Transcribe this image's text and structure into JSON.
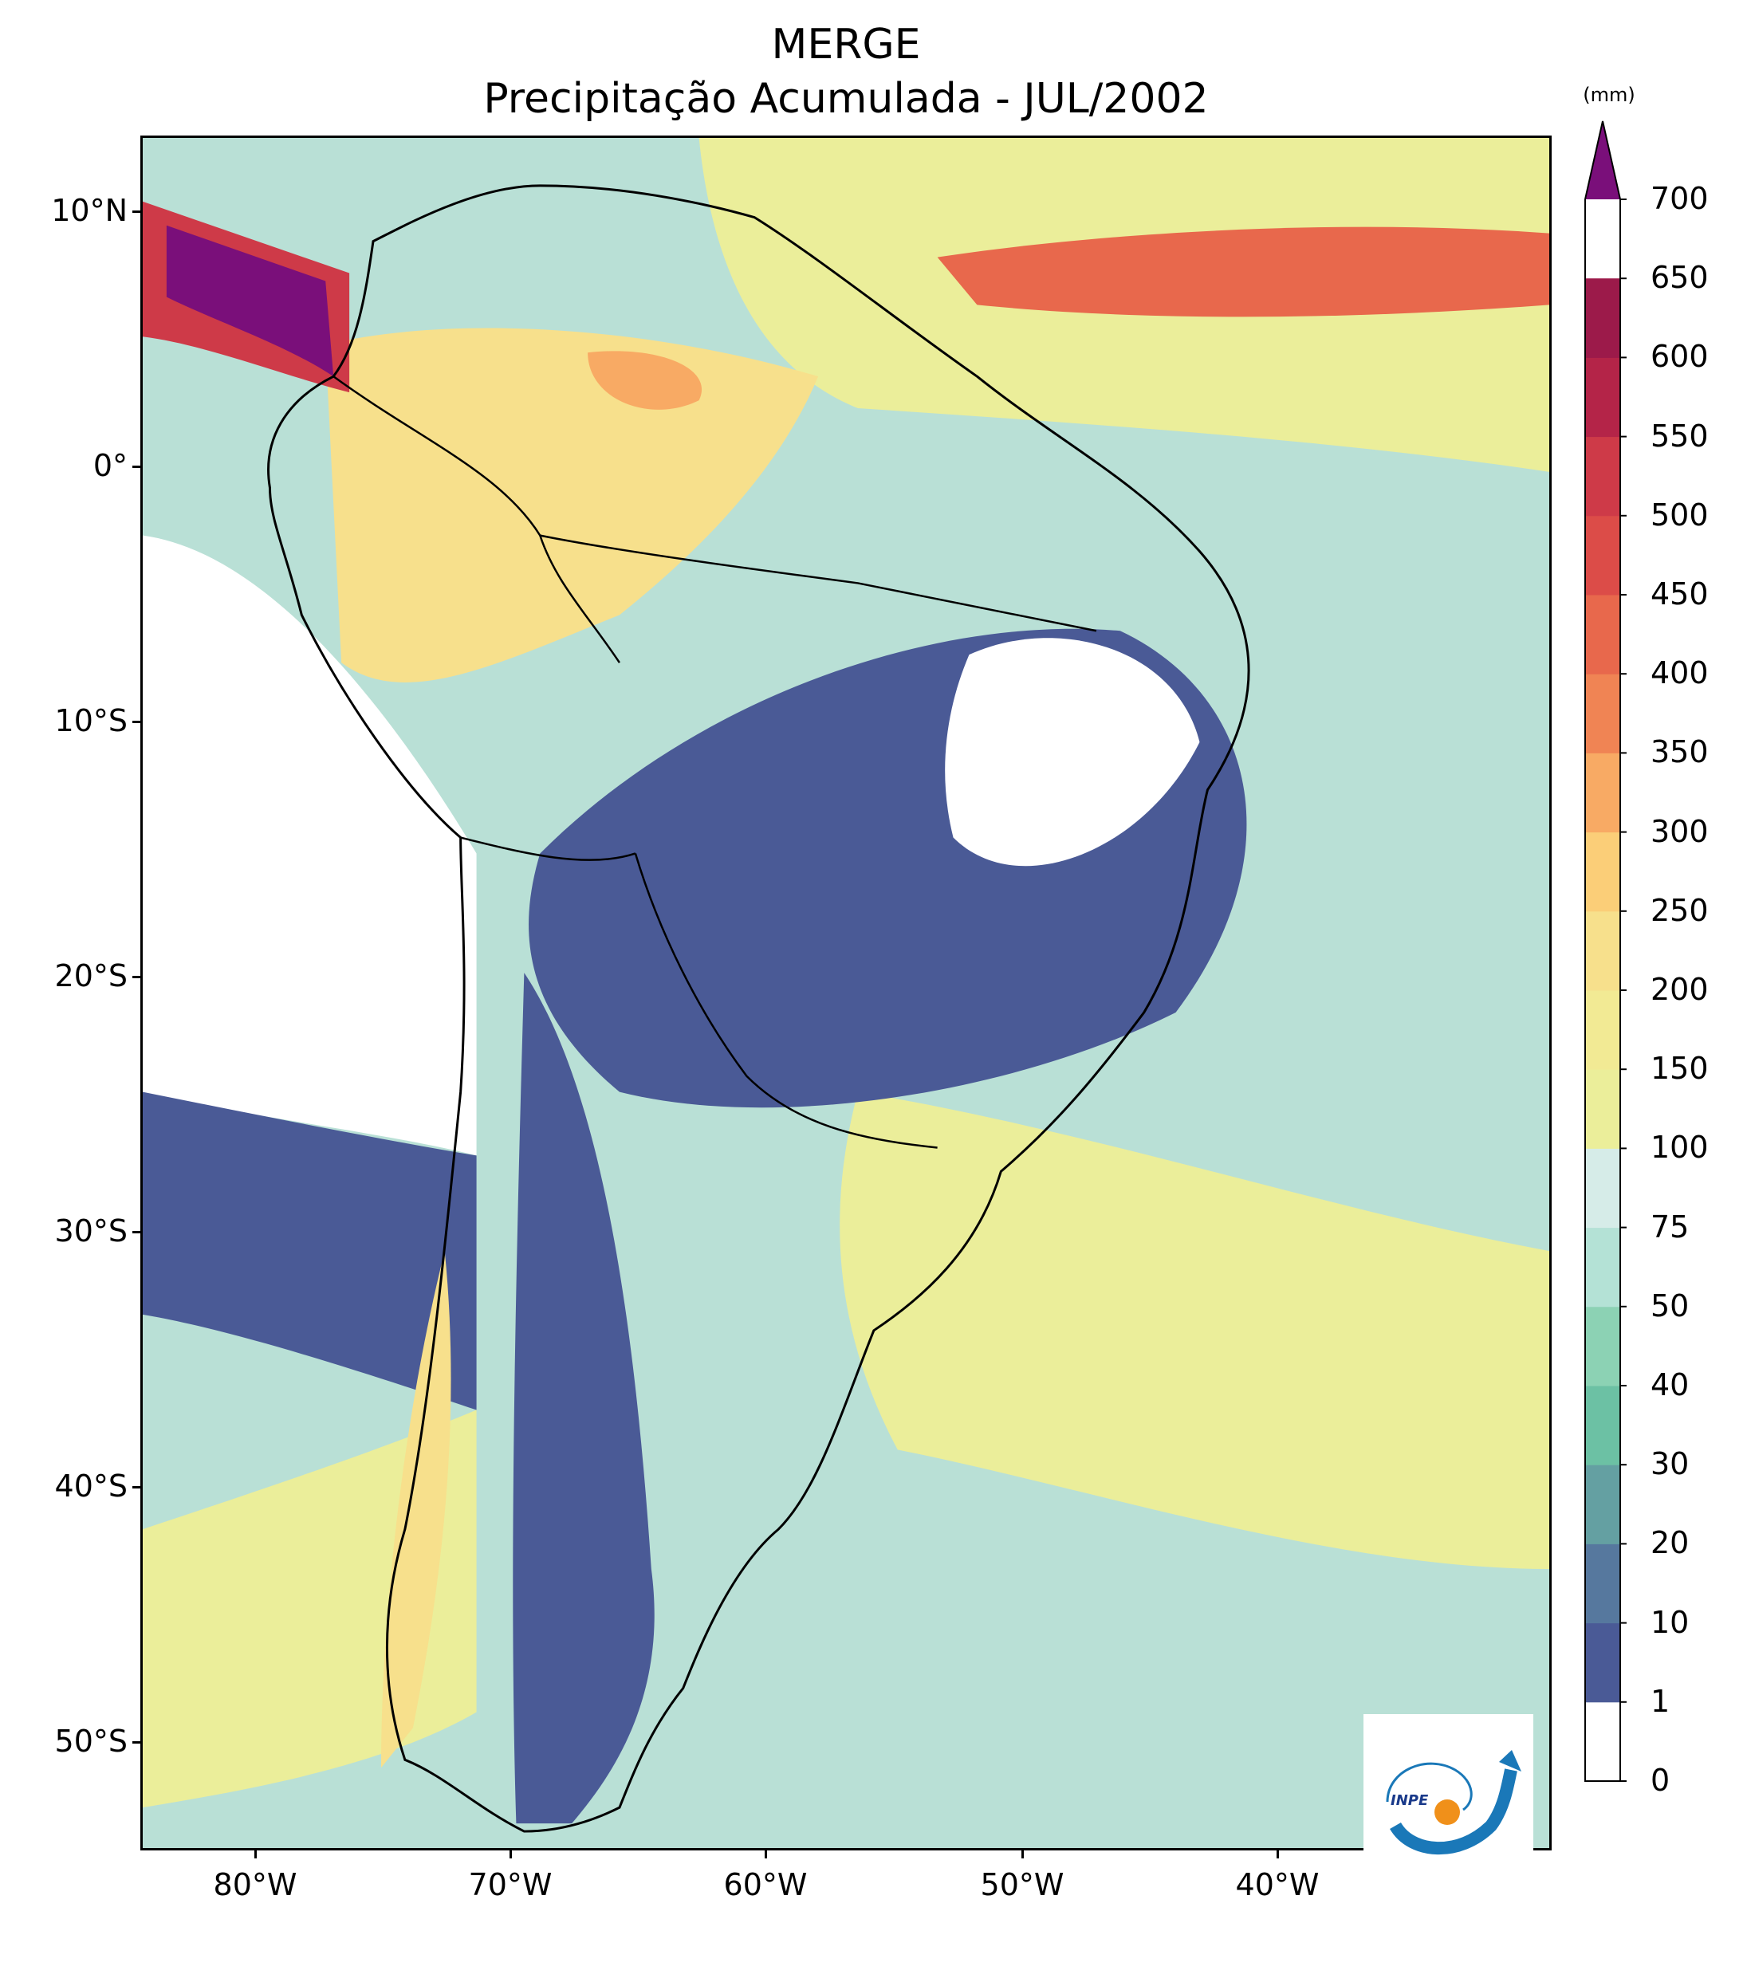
{
  "title": {
    "line1": "MERGE",
    "line2": "Precipitação Acumulada - JUL/2002"
  },
  "map": {
    "region": "South America",
    "extent": {
      "lon_min": -85,
      "lon_max": -30,
      "lat_min": -56,
      "lat_max": 12.8
    },
    "lat_ticks": [
      {
        "label": "10°N",
        "value": 10
      },
      {
        "label": "0°",
        "value": 0
      },
      {
        "label": "10°S",
        "value": -10
      },
      {
        "label": "20°S",
        "value": -20
      },
      {
        "label": "30°S",
        "value": -30
      },
      {
        "label": "40°S",
        "value": -40
      },
      {
        "label": "50°S",
        "value": -50
      }
    ],
    "lon_ticks": [
      {
        "label": "80°W",
        "value": -80
      },
      {
        "label": "70°W",
        "value": -70
      },
      {
        "label": "60°W",
        "value": -60
      },
      {
        "label": "50°W",
        "value": -50
      },
      {
        "label": "40°W",
        "value": -40
      }
    ],
    "background_color": "#b9e0d6",
    "coastline_color": "#000000"
  },
  "colorbar": {
    "unit": "(mm)",
    "levels": [
      "0",
      "1",
      "10",
      "20",
      "30",
      "40",
      "50",
      "75",
      "100",
      "150",
      "200",
      "250",
      "300",
      "350",
      "400",
      "450",
      "500",
      "550",
      "600",
      "650",
      "700"
    ],
    "colors": [
      "#ffffff",
      "#4a5a96",
      "#56789e",
      "#64a0a2",
      "#6cc1a4",
      "#8cd2b4",
      "#b4e2d6",
      "#d6ece8",
      "#ebee9a",
      "#f2ea94",
      "#f7e08c",
      "#fbce78",
      "#f8aa64",
      "#f08454",
      "#e8684c",
      "#dc4c48",
      "#ce3a48",
      "#b42448",
      "#9c1a4a"
    ],
    "extend_color": "#7a0f7a"
  },
  "logo": {
    "text": "INPE"
  }
}
